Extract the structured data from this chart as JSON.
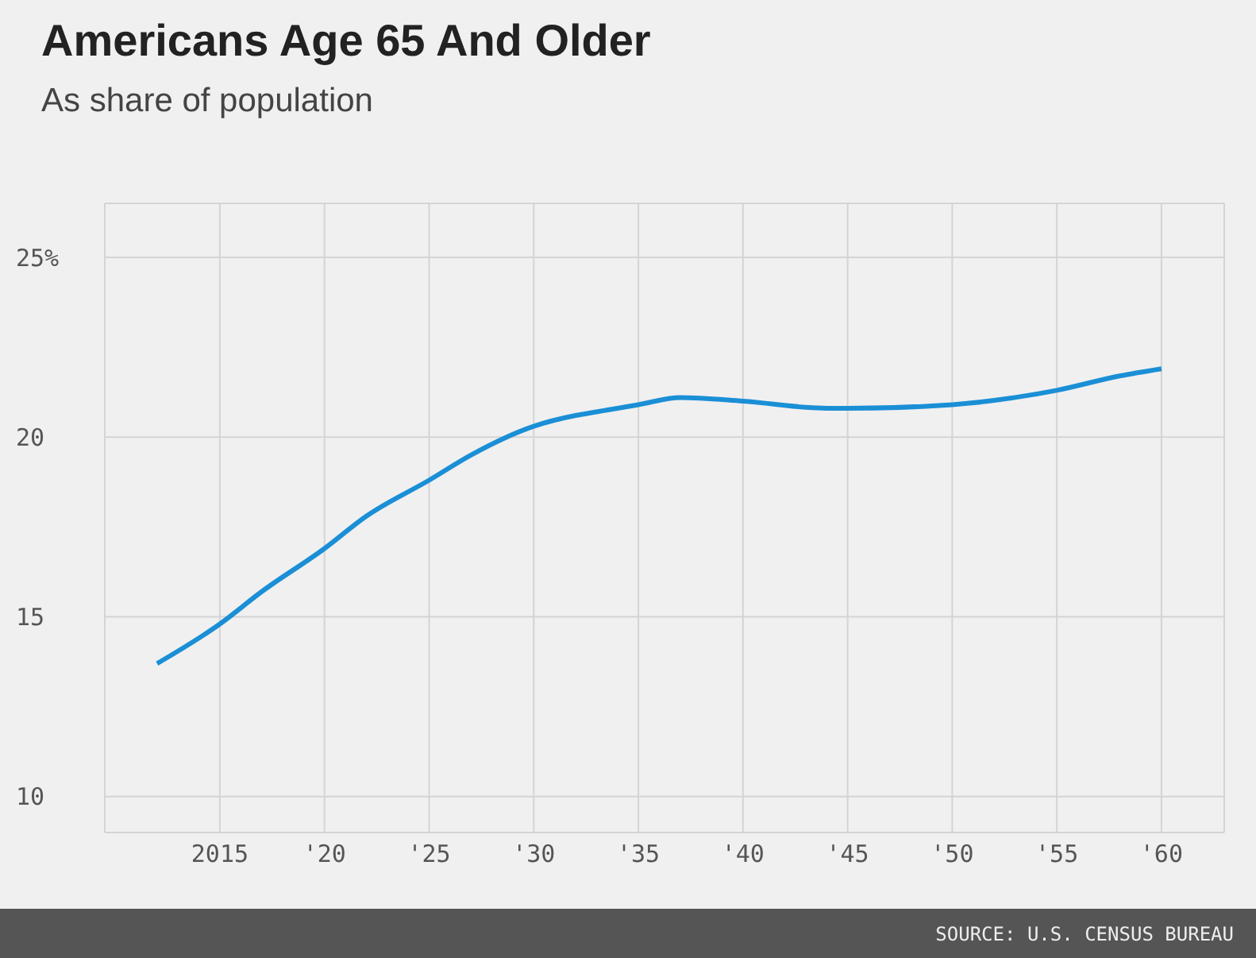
{
  "chart_data": {
    "type": "line",
    "title": "Americans Age 65 And Older",
    "subtitle": "As share of population",
    "x": [
      2012,
      2015,
      2017,
      2020,
      2022,
      2025,
      2027,
      2030,
      2032,
      2033,
      2035,
      2037,
      2040,
      2044,
      2045,
      2050,
      2053,
      2055,
      2058,
      2060
    ],
    "series": [
      {
        "color": "#1a8fd6",
        "values": [
          13.7,
          14.8,
          15.7,
          16.9,
          17.8,
          18.8,
          19.5,
          20.3,
          20.6,
          20.7,
          20.9,
          21.1,
          21.0,
          20.8,
          20.8,
          20.9,
          21.1,
          21.3,
          21.7,
          21.9
        ]
      }
    ],
    "xlim": [
      2009.5,
      2063
    ],
    "xticks": [
      2015,
      {
        "value": 2020,
        "label": "'20"
      },
      {
        "value": 2025,
        "label": "'25"
      },
      {
        "value": 2030,
        "label": "'30"
      },
      {
        "value": 2035,
        "label": "'35"
      },
      {
        "value": 2040,
        "label": "'40"
      },
      {
        "value": 2045,
        "label": "'45"
      },
      {
        "value": 2050,
        "label": "'50"
      },
      {
        "value": 2055,
        "label": "'55"
      },
      {
        "value": 2060,
        "label": "'60"
      }
    ],
    "ylim": [
      9,
      26.5
    ],
    "yticks": [
      10,
      15,
      20,
      {
        "value": 25,
        "label": "25%"
      }
    ],
    "grid": true,
    "marker": "none",
    "line_style": "solid",
    "annotations": [
      "SOURCE: U.S. CENSUS BUREAU"
    ]
  }
}
